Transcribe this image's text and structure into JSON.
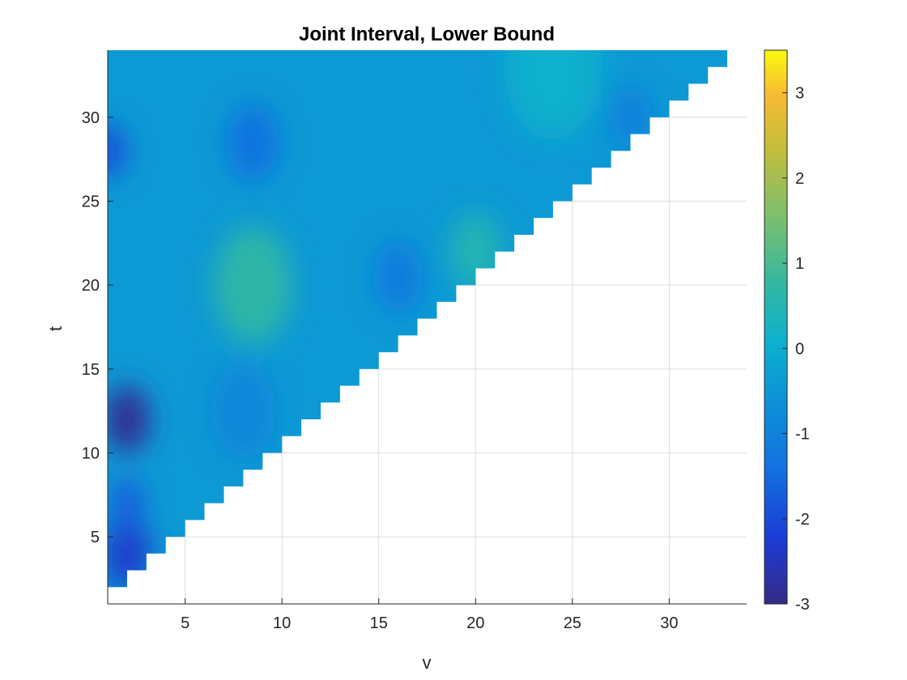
{
  "chart_data": {
    "type": "heatmap",
    "title": "Joint Interval, Lower Bound",
    "xlabel": "v",
    "ylabel": "t",
    "xlim": [
      1,
      34
    ],
    "ylim": [
      1,
      34
    ],
    "x_ticks": [
      5,
      10,
      15,
      20,
      25,
      30
    ],
    "y_ticks": [
      5,
      10,
      15,
      20,
      25,
      30
    ],
    "grid": true,
    "colormap": "parula",
    "colorbar": {
      "range": [
        -3,
        3.5
      ],
      "ticks": [
        -3,
        -2,
        -1,
        0,
        1,
        2,
        3
      ],
      "location": "right"
    },
    "mask": "values shown only where t > v (upper-left triangle)",
    "value_features": [
      {
        "v": 2,
        "t": 12,
        "value": -2.9
      },
      {
        "v": 2,
        "t": 4,
        "value": -2.3
      },
      {
        "v": 1,
        "t": 28,
        "value": -2.0
      },
      {
        "v": 2,
        "t": 7,
        "value": -1.7
      },
      {
        "v": 8.5,
        "t": 28.5,
        "value": -1.4
      },
      {
        "v": 8,
        "t": 12.5,
        "value": -0.9
      },
      {
        "v": 16,
        "t": 20.5,
        "value": -1.2
      },
      {
        "v": 28,
        "t": 30,
        "value": -1.1
      },
      {
        "v": 8.5,
        "t": 20,
        "value": 0.7
      },
      {
        "v": 20,
        "t": 22,
        "value": 0.5
      },
      {
        "v": 24,
        "t": 33,
        "value": 0.1
      }
    ]
  }
}
